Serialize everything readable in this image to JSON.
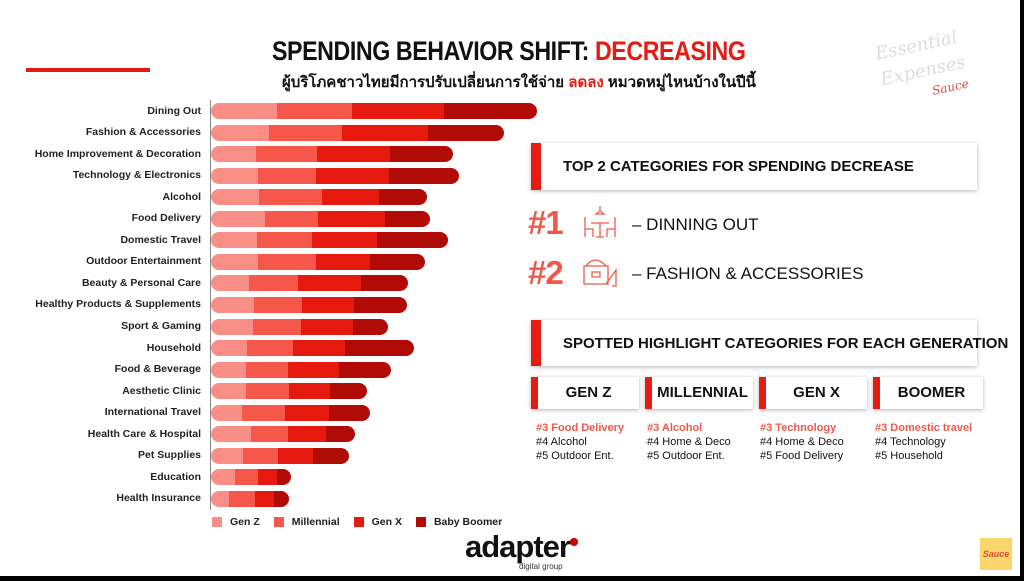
{
  "header": {
    "title_black": "SPENDING BEHAVIOR SHIFT: ",
    "title_red": "DECREASING",
    "subtitle_pre": "ผู้บริโภคชาวไทยมีการปรับเปลี่ยนการใช้จ่าย ",
    "subtitle_red": "ลดลง",
    "subtitle_post": " หมวดหมู่ไหนบ้างในปีนี้",
    "watermark": "Essential Expenses",
    "watermark_brand": "Sauce"
  },
  "chart_data": {
    "type": "bar",
    "orientation": "horizontal",
    "stacked": true,
    "note_units": "relative (no axis printed)",
    "categories": [
      "Dining Out",
      "Fashion & Accessories",
      "Home Improvement & Decoration",
      "Technology & Electronics",
      "Alcohol",
      "Food Delivery",
      "Domestic Travel",
      "Outdoor Entertainment",
      "Beauty & Personal Care",
      "Healthy Products & Supplements",
      "Sport & Gaming",
      "Household",
      "Food & Beverage",
      "Aesthetic Clinic",
      "International Travel",
      "Health Care & Hospital",
      "Pet Supplies",
      "Education",
      "Health Insurance"
    ],
    "series": [
      {
        "name": "Gen Z",
        "color": "#f88e86",
        "values": [
          66,
          58,
          45,
          47,
          48,
          54,
          46,
          47,
          38,
          43,
          42,
          36,
          35,
          35,
          31,
          40,
          32,
          24,
          18
        ]
      },
      {
        "name": "Millennial",
        "color": "#f5574a",
        "values": [
          75,
          73,
          61,
          58,
          63,
          53,
          55,
          58,
          49,
          48,
          48,
          46,
          42,
          43,
          43,
          37,
          35,
          23,
          26
        ]
      },
      {
        "name": "Gen X",
        "color": "#e6190e",
        "values": [
          92,
          86,
          73,
          73,
          57,
          67,
          65,
          54,
          63,
          52,
          52,
          52,
          51,
          41,
          44,
          38,
          35,
          19,
          19
        ]
      },
      {
        "name": "Baby Boomer",
        "color": "#b00b05",
        "values": [
          93,
          76,
          63,
          70,
          48,
          45,
          71,
          55,
          47,
          53,
          35,
          69,
          52,
          37,
          41,
          29,
          36,
          14,
          15
        ]
      }
    ],
    "legend": "bottom",
    "grid": false
  },
  "top2": {
    "title": "TOP 2 CATEGORIES FOR SPENDING DECREASE",
    "items": [
      {
        "rank": "#1",
        "icon": "dining-table-icon",
        "label": "– DINNING OUT"
      },
      {
        "rank": "#2",
        "icon": "handbag-heel-icon",
        "label": "– FASHION & ACCESSORIES"
      }
    ]
  },
  "highlights": {
    "title": "SPOTTED HIGHLIGHT CATEGORIES FOR EACH GENERATION",
    "gens": [
      {
        "name": "GEN Z",
        "items": [
          "#3 Food Delivery",
          "#4 Alcohol",
          "#5 Outdoor Ent."
        ]
      },
      {
        "name": "MILLENNIAL",
        "items": [
          "#3 Alcohol",
          "#4 Home & Deco",
          "#5 Outdoor Ent."
        ]
      },
      {
        "name": "GEN X",
        "items": [
          "#3 Technology",
          "#4 Home & Deco",
          "#5 Food Delivery"
        ]
      },
      {
        "name": "BOOMER",
        "items": [
          "#3 Domestic travel",
          "#4 Technology",
          "#5 Household"
        ]
      }
    ]
  },
  "footer": {
    "logo": "adapter",
    "logo_sub": "digital group",
    "badge": "Sauce"
  },
  "colors": {
    "accent": "#e51c12",
    "rank": "#f0594a"
  }
}
